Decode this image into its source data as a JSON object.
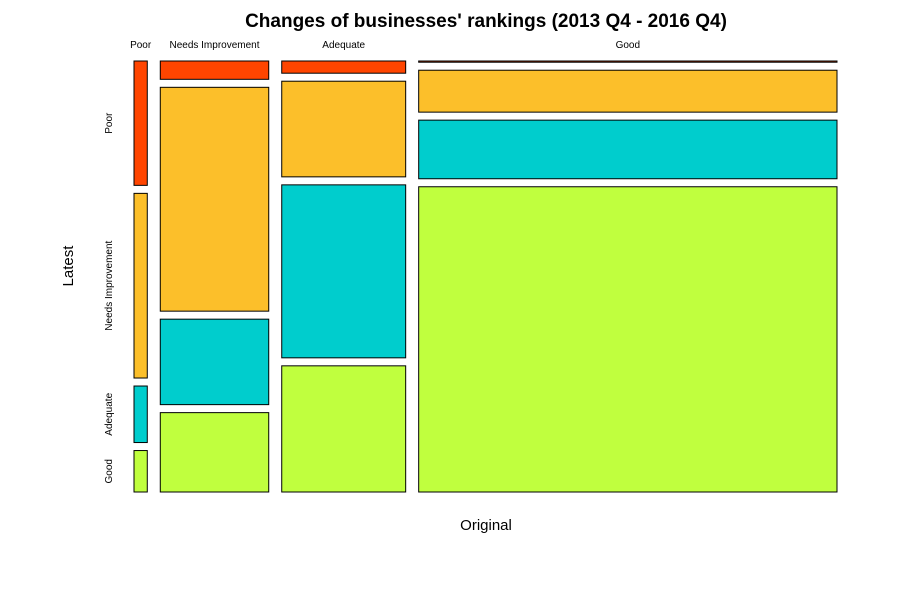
{
  "chart_data": {
    "type": "mosaic",
    "title": "Changes of businesses' rankings (2013 Q4 - 2016 Q4)",
    "xlabel": "Original",
    "ylabel": "Latest",
    "x_categories": [
      "Poor",
      "Needs Improvement",
      "Adequate",
      "Good"
    ],
    "y_categories": [
      "Poor",
      "Needs Improvement",
      "Adequate",
      "Good"
    ],
    "x_proportions": [
      0.03,
      0.245,
      0.28,
      0.945
    ],
    "y_proportions_by_column": [
      [
        0.33,
        0.49,
        0.15,
        0.11
      ],
      [
        0.045,
        0.55,
        0.21,
        0.195
      ],
      [
        0.03,
        0.235,
        0.425,
        0.31
      ],
      [
        0.003,
        0.103,
        0.144,
        0.75
      ]
    ],
    "colors": [
      "#ff4500",
      "#fcbf2a",
      "#00cdcd",
      "#c0ff3e"
    ]
  }
}
